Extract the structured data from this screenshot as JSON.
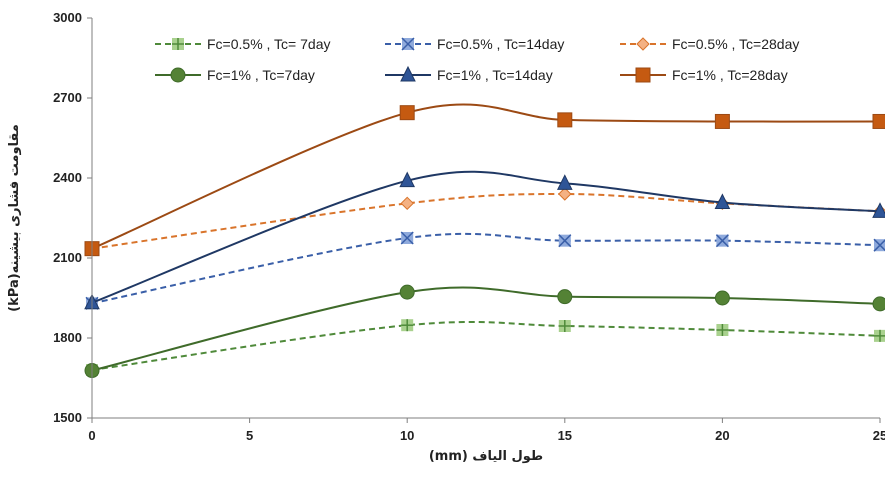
{
  "chart_data": {
    "type": "line",
    "title": "",
    "xlabel": "طول الیاف (mm)",
    "ylabel": "مقاومت فشاری بیشینه(kPa)",
    "xlim": [
      0,
      25
    ],
    "ylim": [
      1500,
      3000
    ],
    "x_ticks": [
      "0",
      "5",
      "10",
      "15",
      "20",
      "25"
    ],
    "y_ticks": [
      "1500",
      "1800",
      "2100",
      "2400",
      "2700",
      "3000"
    ],
    "legend_placement": "top",
    "grid": false,
    "series": [
      {
        "name": "Fc=0.5% , Tc= 7day",
        "x": [
          0,
          10,
          15,
          20,
          25
        ],
        "y": [
          1680,
          1848,
          1845,
          1830,
          1808
        ],
        "color": "#4f8a3a",
        "marker_fill": "#a9d18e",
        "marker": "plus-square",
        "dashed": true
      },
      {
        "name": "Fc=0.5% , Tc=14day",
        "x": [
          0,
          10,
          15,
          20,
          25
        ],
        "y": [
          1930,
          2175,
          2165,
          2165,
          2148
        ],
        "color": "#3a5fa8",
        "marker_fill": "#8faadc",
        "marker": "x-square",
        "dashed": true
      },
      {
        "name": "Fc=0.5% , Tc=28day",
        "x": [
          0,
          10,
          15,
          20,
          25
        ],
        "y": [
          2135,
          2305,
          2340,
          2305,
          2275
        ],
        "color": "#d9742b",
        "marker_fill": "#f4b183",
        "marker": "diamond",
        "dashed": true
      },
      {
        "name": "Fc=1% , Tc=7day",
        "x": [
          0,
          10,
          15,
          20,
          25
        ],
        "y": [
          1678,
          1972,
          1955,
          1950,
          1928
        ],
        "color": "#3f6b2a",
        "marker_fill": "#548235",
        "marker": "circle",
        "dashed": false
      },
      {
        "name": "Fc=1% , Tc=14day",
        "x": [
          0,
          10,
          15,
          20,
          25
        ],
        "y": [
          1932,
          2390,
          2380,
          2308,
          2275
        ],
        "color": "#1f3864",
        "marker_fill": "#2f5597",
        "marker": "triangle",
        "dashed": false
      },
      {
        "name": "Fc=1% , Tc=28day",
        "x": [
          0,
          10,
          15,
          20,
          25
        ],
        "y": [
          2135,
          2645,
          2618,
          2612,
          2612
        ],
        "color": "#9c4a14",
        "marker_fill": "#c55a11",
        "marker": "square",
        "dashed": false
      }
    ]
  }
}
